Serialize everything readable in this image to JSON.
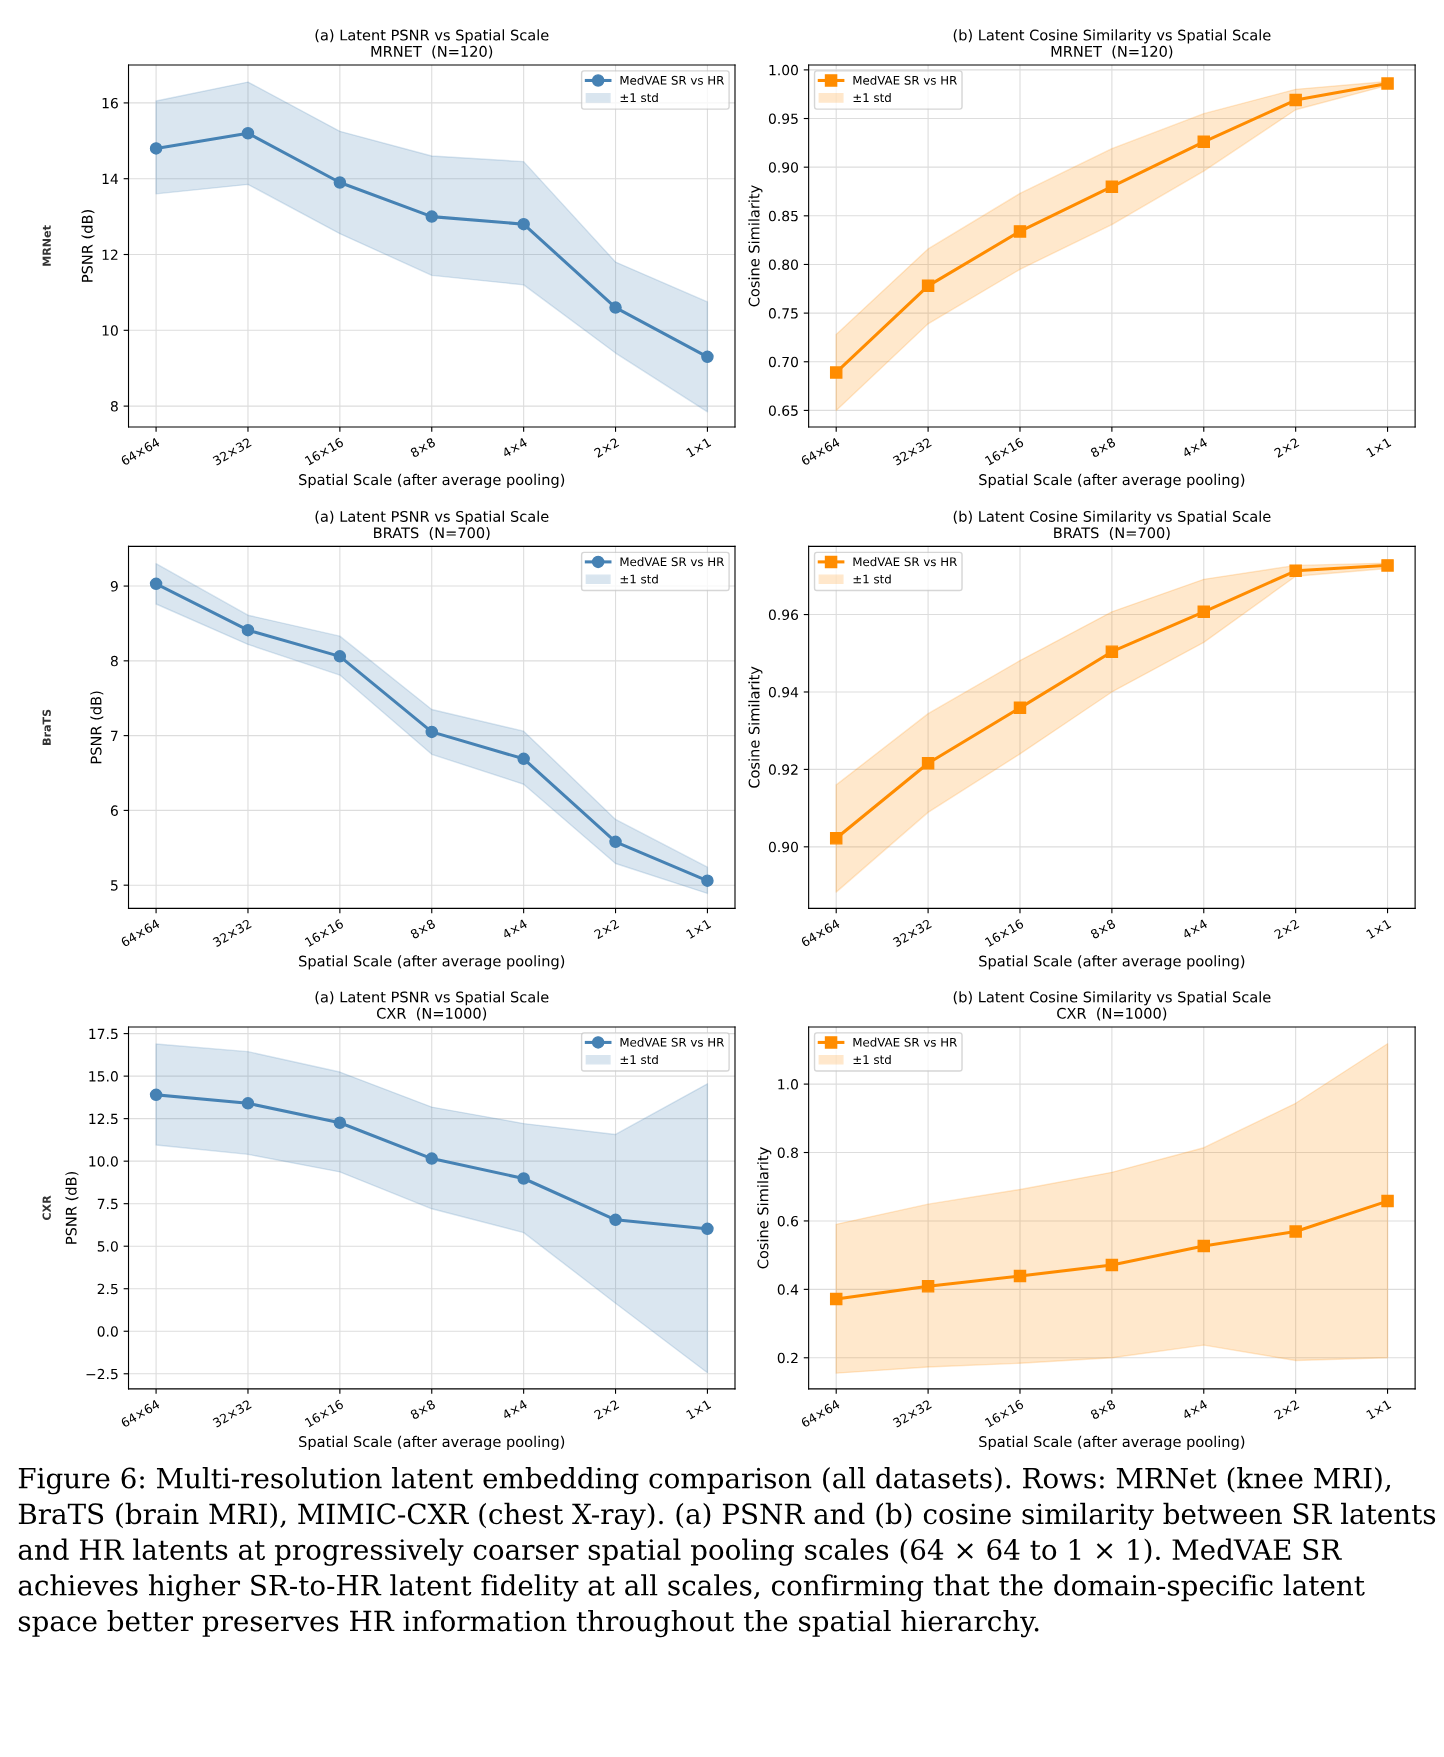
{
  "chart_data": [
    {
      "type": "line",
      "title": "(a) Latent PSNR vs Spatial Scale",
      "subtitle": "MRNET  (N=120)",
      "xlabel": "Spatial Scale (after average pooling)",
      "ylabel": "PSNR (dB)",
      "annotations": [
        "±1 std",
        "MRNet"
      ],
      "categories": [
        "64×64",
        "32×32",
        "16×16",
        "8×8",
        "4×4",
        "2×2",
        "1×1"
      ],
      "series": [
        {
          "name": "MedVAE SR vs HR",
          "color": "#4682b4",
          "values": [
            14.8,
            15.2,
            13.9,
            13.0,
            12.8,
            10.6,
            9.3
          ],
          "lower": [
            13.6,
            13.85,
            12.55,
            11.45,
            11.2,
            9.4,
            7.85
          ],
          "upper": [
            16.05,
            16.55,
            15.25,
            14.6,
            14.45,
            11.8,
            10.75
          ]
        }
      ],
      "ylim": [
        7.45,
        17.0
      ],
      "yticks": [
        8,
        10,
        12,
        14,
        16
      ],
      "grid": true,
      "legend": "top right",
      "marker": "circle",
      "line_style": "solid"
    },
    {
      "type": "line",
      "title": "(b) Latent Cosine Similarity vs Spatial Scale",
      "subtitle": "MRNET  (N=120)",
      "xlabel": "Spatial Scale (after average pooling)",
      "ylabel": "Cosine Similarity",
      "annotations": [
        "±1 std"
      ],
      "categories": [
        "64×64",
        "32×32",
        "16×16",
        "8×8",
        "4×4",
        "2×2",
        "1×1"
      ],
      "series": [
        {
          "name": "MedVAE SR vs HR",
          "color": "#ff8c00",
          "values": [
            0.689,
            0.778,
            0.834,
            0.88,
            0.926,
            0.969,
            0.986
          ],
          "lower": [
            0.65,
            0.739,
            0.795,
            0.841,
            0.896,
            0.959,
            0.984
          ],
          "upper": [
            0.728,
            0.816,
            0.873,
            0.919,
            0.955,
            0.98,
            0.988
          ]
        }
      ],
      "ylim": [
        0.633,
        1.005
      ],
      "yticks": [
        {
          "value": 0.65,
          "label": "0.65"
        },
        {
          "value": 0.7,
          "label": "0.70"
        },
        {
          "value": 0.75,
          "label": "0.75"
        },
        {
          "value": 0.8,
          "label": "0.80"
        },
        {
          "value": 0.85,
          "label": "0.85"
        },
        {
          "value": 0.9,
          "label": "0.90"
        },
        {
          "value": 0.95,
          "label": "0.95"
        },
        {
          "value": 1.0,
          "label": "1.00"
        }
      ],
      "grid": true,
      "legend": "top left",
      "marker": "square",
      "line_style": "solid"
    },
    {
      "type": "line",
      "title": "(a) Latent PSNR vs Spatial Scale",
      "subtitle": "BRATS  (N=700)",
      "xlabel": "Spatial Scale (after average pooling)",
      "ylabel": "PSNR (dB)",
      "annotations": [
        "±1 std",
        "BraTS"
      ],
      "categories": [
        "64×64",
        "32×32",
        "16×16",
        "8×8",
        "4×4",
        "2×2",
        "1×1"
      ],
      "series": [
        {
          "name": "MedVAE SR vs HR",
          "color": "#4682b4",
          "values": [
            9.03,
            8.41,
            8.06,
            7.05,
            6.69,
            5.58,
            5.06
          ],
          "lower": [
            8.76,
            8.22,
            7.81,
            6.75,
            6.35,
            5.29,
            4.89
          ],
          "upper": [
            9.3,
            8.61,
            8.33,
            7.35,
            7.06,
            5.88,
            5.24
          ]
        }
      ],
      "ylim": [
        4.69,
        9.53
      ],
      "yticks": [
        5,
        6,
        7,
        8,
        9
      ],
      "grid": true,
      "legend": "top right",
      "marker": "circle",
      "line_style": "solid"
    },
    {
      "type": "line",
      "title": "(b) Latent Cosine Similarity vs Spatial Scale",
      "subtitle": "BRATS  (N=700)",
      "xlabel": "Spatial Scale (after average pooling)",
      "ylabel": "Cosine Similarity",
      "annotations": [
        "±1 std"
      ],
      "categories": [
        "64×64",
        "32×32",
        "16×16",
        "8×8",
        "4×4",
        "2×2",
        "1×1"
      ],
      "series": [
        {
          "name": "MedVAE SR vs HR",
          "color": "#ff8c00",
          "values": [
            0.9022,
            0.9216,
            0.9359,
            0.9504,
            0.9607,
            0.9713,
            0.9727
          ],
          "lower": [
            0.8883,
            0.9089,
            0.924,
            0.94,
            0.9528,
            0.9699,
            0.9719
          ],
          "upper": [
            0.916,
            0.9344,
            0.9481,
            0.9607,
            0.9691,
            0.9727,
            0.9733
          ]
        }
      ],
      "ylim": [
        0.8841,
        0.9776
      ],
      "yticks": [
        {
          "value": 0.9,
          "label": "0.90"
        },
        {
          "value": 0.92,
          "label": "0.92"
        },
        {
          "value": 0.94,
          "label": "0.94"
        },
        {
          "value": 0.96,
          "label": "0.96"
        }
      ],
      "grid": true,
      "legend": "top left",
      "marker": "square",
      "line_style": "solid"
    },
    {
      "type": "line",
      "title": "(a) Latent PSNR vs Spatial Scale",
      "subtitle": "CXR  (N=1000)",
      "xlabel": "Spatial Scale (after average pooling)",
      "ylabel": "PSNR (dB)",
      "annotations": [
        "±1 std",
        "CXR"
      ],
      "categories": [
        "64×64",
        "32×32",
        "16×16",
        "8×8",
        "4×4",
        "2×2",
        "1×1"
      ],
      "series": [
        {
          "name": "MedVAE SR vs HR",
          "color": "#4682b4",
          "values": [
            13.9,
            13.4,
            12.26,
            10.15,
            8.98,
            6.55,
            6.02
          ],
          "lower": [
            10.95,
            10.4,
            9.37,
            7.2,
            5.8,
            1.65,
            -2.44
          ],
          "upper": [
            16.89,
            16.44,
            15.24,
            13.18,
            12.21,
            11.57,
            14.55
          ]
        }
      ],
      "ylim": [
        -3.39,
        17.89
      ],
      "yticks": [
        {
          "value": -2.5,
          "label": "−2.5"
        },
        {
          "value": 0,
          "label": "0.0"
        },
        2.5,
        {
          "value": 5,
          "label": "5.0"
        },
        7.5,
        {
          "value": 10,
          "label": "10.0"
        },
        12.5,
        {
          "value": 15,
          "label": "15.0"
        },
        17.5
      ],
      "grid": true,
      "legend": "top right",
      "marker": "circle",
      "line_style": "solid"
    },
    {
      "type": "line",
      "title": "(b) Latent Cosine Similarity vs Spatial Scale",
      "subtitle": "CXR  (N=1000)",
      "xlabel": "Spatial Scale (after average pooling)",
      "ylabel": "Cosine Similarity",
      "annotations": [
        "±1 std",
        "Figure 6: Multi-resolution latent embedding comparison (all datasets). Rows: MRNet (knee MRI), BraTS (brain MRI), MIMIC-CXR (chest X-ray). (a) PSNR and (b) cosine similarity between SR latents and HR latents at progressively coarser spatial pooling scales (64 × 64 to 1 × 1). MedVAE SR achieves higher SR-to-HR latent fidelity at all scales, confirming that the domain-specific latent space better preserves HR information throughout the spatial hierarchy."
      ],
      "categories": [
        "64×64",
        "32×32",
        "16×16",
        "8×8",
        "4×4",
        "2×2",
        "1×1"
      ],
      "series": [
        {
          "name": "MedVAE SR vs HR",
          "color": "#ff8c00",
          "values": [
            0.372,
            0.409,
            0.439,
            0.471,
            0.527,
            0.569,
            0.658
          ],
          "lower": [
            0.155,
            0.173,
            0.184,
            0.2,
            0.237,
            0.192,
            0.2
          ],
          "upper": [
            0.59,
            0.649,
            0.692,
            0.742,
            0.814,
            0.944,
            1.118
          ]
        }
      ],
      "ylim": [
        0.109,
        1.167
      ],
      "yticks": [
        0.2,
        0.4,
        0.6,
        0.8,
        {
          "value": 1.0,
          "label": "1.0"
        }
      ],
      "grid": true,
      "legend": "top left",
      "marker": "square",
      "line_style": "solid"
    }
  ]
}
